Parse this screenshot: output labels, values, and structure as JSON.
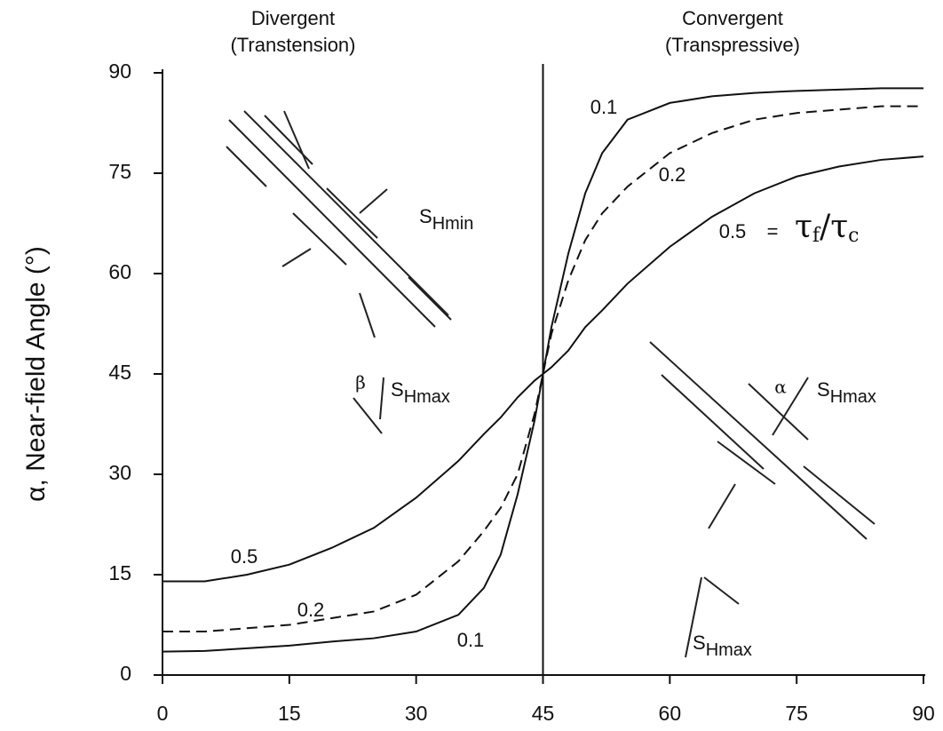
{
  "chart_data": {
    "type": "line",
    "headers": [
      "Divergent",
      "(Transtension)",
      "Convergent",
      "(Transpressive)"
    ],
    "y_label": "α, Near-field Angle (°)",
    "x": [
      0,
      5,
      10,
      15,
      20,
      25,
      30,
      35,
      38,
      40,
      42,
      44,
      45,
      46,
      48,
      50,
      52,
      55,
      60,
      65,
      70,
      75,
      80,
      85,
      90
    ],
    "series": [
      {
        "name": "0.1",
        "color": "#111111",
        "dash": false,
        "values": [
          3.5,
          3.6,
          4,
          4.4,
          5,
          5.5,
          6.5,
          9,
          13,
          18,
          27,
          38,
          45,
          52,
          63,
          72,
          78,
          83,
          85.5,
          86.5,
          87,
          87.3,
          87.5,
          87.7,
          87.7
        ]
      },
      {
        "name": "0.2",
        "color": "#111111",
        "dash": true,
        "values": [
          6.5,
          6.5,
          7,
          7.5,
          8.5,
          9.5,
          12,
          17,
          21.5,
          25,
          30,
          39,
          45,
          51,
          59,
          65,
          69,
          73,
          78,
          81,
          83,
          84,
          84.5,
          85,
          85
        ]
      },
      {
        "name": "0.5",
        "color": "#111111",
        "dash": false,
        "values": [
          14,
          14,
          15,
          16.5,
          19,
          22,
          26.5,
          32,
          36,
          38.5,
          41.5,
          44,
          45,
          46,
          48.5,
          52,
          54.5,
          58.5,
          64,
          68.5,
          72,
          74.5,
          76,
          77,
          77.5
        ]
      }
    ],
    "vline": 45,
    "xlim": [
      0,
      90
    ],
    "xticks": [
      0,
      15,
      30,
      45,
      60,
      75,
      90
    ],
    "ylim": [
      0,
      90
    ],
    "yticks": [
      0,
      15,
      30,
      45,
      60,
      75,
      90
    ],
    "equals": "=",
    "ratio": [
      "τ",
      "f",
      "/",
      "τ",
      "c"
    ],
    "stress_labels": [
      {
        "base": "S",
        "sub": "Hmin"
      },
      {
        "base": "S",
        "sub": "Hmax"
      },
      {
        "base": "S",
        "sub": "Hmax"
      },
      {
        "base": "S",
        "sub": "Hmax"
      }
    ],
    "angle_labels": [
      "β",
      "α"
    ]
  }
}
